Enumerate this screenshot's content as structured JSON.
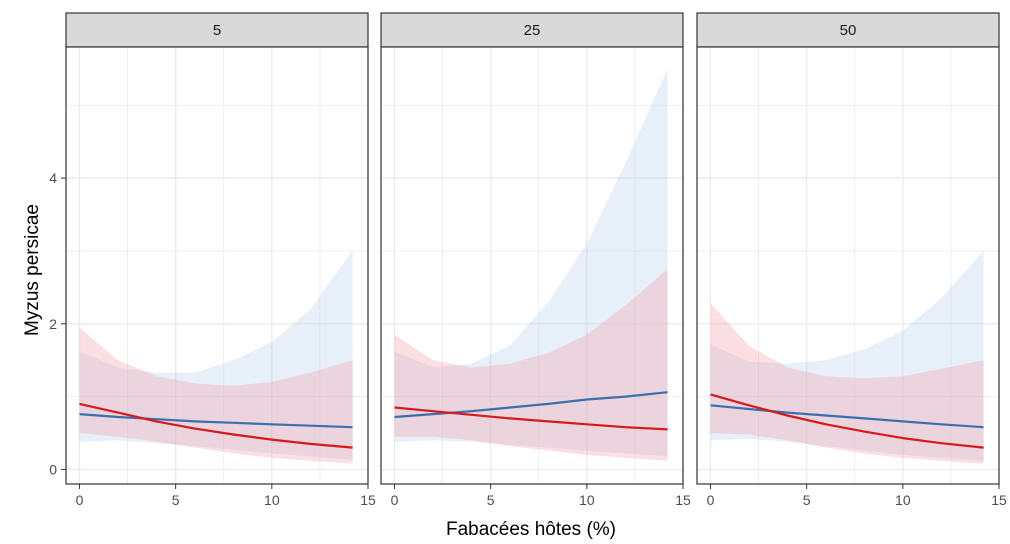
{
  "chart_data": {
    "type": "line",
    "xlabel": "Fabacées hôtes (%)",
    "ylabel": "Myzus persicae",
    "xlim": [
      -0.7,
      15
    ],
    "ylim": [
      -0.2,
      5.8
    ],
    "xticks": [
      0,
      5,
      10,
      15
    ],
    "xtick_labels": [
      "0",
      "5",
      "10",
      "15"
    ],
    "yticks": [
      0,
      2,
      4
    ],
    "ytick_labels": [
      "0",
      "2",
      "4"
    ],
    "grid": true,
    "legend": "none",
    "colors": {
      "red": "#d7191c",
      "blue": "#3a6fb0",
      "red_band": "#f4a3ab",
      "blue_band": "#aecbe8",
      "strip_fill": "#d9d9d9",
      "grid": "#ebebeb"
    },
    "panels": [
      {
        "title": "5",
        "series": [
          {
            "color": "red",
            "x": [
              0,
              2,
              4,
              6,
              8,
              10,
              12,
              14.2
            ],
            "y": [
              0.9,
              0.78,
              0.66,
              0.56,
              0.48,
              0.41,
              0.35,
              0.3
            ],
            "lower": [
              0.5,
              0.45,
              0.38,
              0.3,
              0.22,
              0.16,
              0.12,
              0.08
            ],
            "upper": [
              1.95,
              1.5,
              1.28,
              1.18,
              1.15,
              1.2,
              1.33,
              1.5
            ]
          },
          {
            "color": "blue",
            "x": [
              0,
              2,
              4,
              6,
              8,
              10,
              12,
              14.2
            ],
            "y": [
              0.76,
              0.72,
              0.69,
              0.66,
              0.64,
              0.62,
              0.6,
              0.58
            ],
            "lower": [
              0.38,
              0.4,
              0.36,
              0.32,
              0.27,
              0.22,
              0.18,
              0.13
            ],
            "upper": [
              1.62,
              1.4,
              1.33,
              1.33,
              1.5,
              1.75,
              2.2,
              3.0
            ]
          }
        ]
      },
      {
        "title": "25",
        "series": [
          {
            "color": "red",
            "x": [
              0,
              2,
              4,
              6,
              8,
              10,
              12,
              14.2
            ],
            "y": [
              0.85,
              0.8,
              0.75,
              0.7,
              0.66,
              0.62,
              0.58,
              0.55
            ],
            "lower": [
              0.45,
              0.45,
              0.4,
              0.32,
              0.26,
              0.2,
              0.16,
              0.12
            ],
            "upper": [
              1.85,
              1.5,
              1.4,
              1.45,
              1.6,
              1.85,
              2.25,
              2.75
            ]
          },
          {
            "color": "blue",
            "x": [
              0,
              2,
              4,
              6,
              8,
              10,
              12,
              14.2
            ],
            "y": [
              0.72,
              0.76,
              0.8,
              0.85,
              0.9,
              0.96,
              1.0,
              1.06
            ],
            "lower": [
              0.38,
              0.4,
              0.38,
              0.34,
              0.3,
              0.26,
              0.22,
              0.18
            ],
            "upper": [
              1.62,
              1.4,
              1.45,
              1.7,
              2.3,
              3.1,
              4.2,
              5.5
            ]
          }
        ]
      },
      {
        "title": "50",
        "series": [
          {
            "color": "red",
            "x": [
              0,
              2,
              4,
              6,
              8,
              10,
              12,
              14.2
            ],
            "y": [
              1.03,
              0.88,
              0.74,
              0.62,
              0.52,
              0.43,
              0.36,
              0.3
            ],
            "lower": [
              0.5,
              0.48,
              0.4,
              0.3,
              0.22,
              0.16,
              0.12,
              0.08
            ],
            "upper": [
              2.28,
              1.7,
              1.4,
              1.28,
              1.25,
              1.28,
              1.38,
              1.5
            ]
          },
          {
            "color": "blue",
            "x": [
              0,
              2,
              4,
              6,
              8,
              10,
              12,
              14.2
            ],
            "y": [
              0.88,
              0.83,
              0.78,
              0.74,
              0.7,
              0.66,
              0.62,
              0.58
            ],
            "lower": [
              0.4,
              0.42,
              0.38,
              0.32,
              0.26,
              0.2,
              0.16,
              0.12
            ],
            "upper": [
              1.72,
              1.48,
              1.45,
              1.5,
              1.65,
              1.9,
              2.35,
              3.0
            ]
          }
        ]
      }
    ]
  }
}
